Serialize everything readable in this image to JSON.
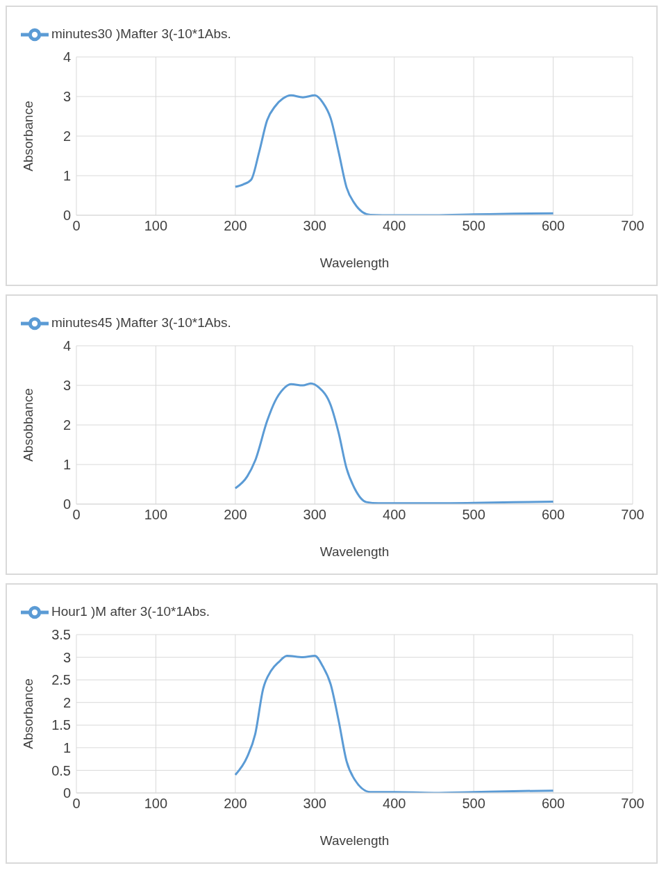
{
  "chart_data": [
    {
      "type": "line",
      "xlabel": "Wavelength",
      "ylabel": "Absorbance",
      "legend": "top left",
      "grid": true,
      "marker": "none",
      "xlim": [
        0,
        700
      ],
      "xticks": [
        0,
        100,
        200,
        300,
        400,
        500,
        600,
        700
      ],
      "ylim": [
        0,
        4
      ],
      "yticks": [
        0,
        1,
        2,
        3,
        4
      ],
      "x": [
        200,
        210,
        220,
        230,
        240,
        250,
        260,
        270,
        285,
        300,
        310,
        320,
        330,
        340,
        350,
        360,
        370,
        400,
        450,
        500,
        550,
        600
      ],
      "series": [
        {
          "name": "minutes30 )Mafter 3(-10*1Abs.",
          "color": "#5b9bd5",
          "values": [
            0.72,
            0.78,
            0.9,
            1.6,
            2.4,
            2.75,
            2.95,
            3.03,
            2.98,
            3.03,
            2.85,
            2.45,
            1.6,
            0.7,
            0.3,
            0.08,
            0.01,
            0,
            0,
            0.02,
            0.04,
            0.05
          ]
        }
      ]
    },
    {
      "type": "line",
      "xlabel": "Wavelength",
      "ylabel": "Absobbance",
      "legend": "top left",
      "grid": true,
      "marker": "none",
      "xlim": [
        0,
        700
      ],
      "xticks": [
        0,
        100,
        200,
        300,
        400,
        500,
        600,
        700
      ],
      "ylim": [
        0,
        4
      ],
      "yticks": [
        0,
        1,
        2,
        3,
        4
      ],
      "x": [
        200,
        215,
        225,
        240,
        250,
        260,
        270,
        285,
        295,
        305,
        320,
        330,
        340,
        350,
        365,
        380,
        450,
        500,
        550,
        600
      ],
      "series": [
        {
          "name": "minutes45 )Mafter 3(-10*1Abs.",
          "color": "#5b9bd5",
          "values": [
            0.4,
            0.7,
            1.1,
            2.1,
            2.6,
            2.9,
            3.03,
            3.0,
            3.05,
            2.95,
            2.5,
            1.8,
            0.9,
            0.4,
            0.05,
            0.02,
            0.02,
            0.03,
            0.05,
            0.06
          ]
        }
      ]
    },
    {
      "type": "line",
      "xlabel": "Wavelength",
      "ylabel": "Absorbance",
      "legend": "top left",
      "grid": true,
      "marker": "none",
      "xlim": [
        0,
        700
      ],
      "xticks": [
        0,
        100,
        200,
        300,
        400,
        500,
        600,
        700
      ],
      "ylim": [
        0,
        3.5
      ],
      "yticks": [
        0,
        0.5,
        1,
        1.5,
        2,
        2.5,
        3,
        3.5
      ],
      "x": [
        200,
        215,
        225,
        235,
        245,
        255,
        265,
        285,
        300,
        310,
        320,
        330,
        340,
        350,
        370,
        400,
        450,
        500,
        550,
        600
      ],
      "series": [
        {
          "name": "Hour1 )M after 3(-10*1Abs.",
          "color": "#5b9bd5",
          "values": [
            0.4,
            0.8,
            1.3,
            2.3,
            2.7,
            2.9,
            3.03,
            3.0,
            3.03,
            2.8,
            2.4,
            1.6,
            0.7,
            0.3,
            0.02,
            0.02,
            0,
            0.02,
            0.04,
            0.05
          ]
        }
      ]
    }
  ]
}
